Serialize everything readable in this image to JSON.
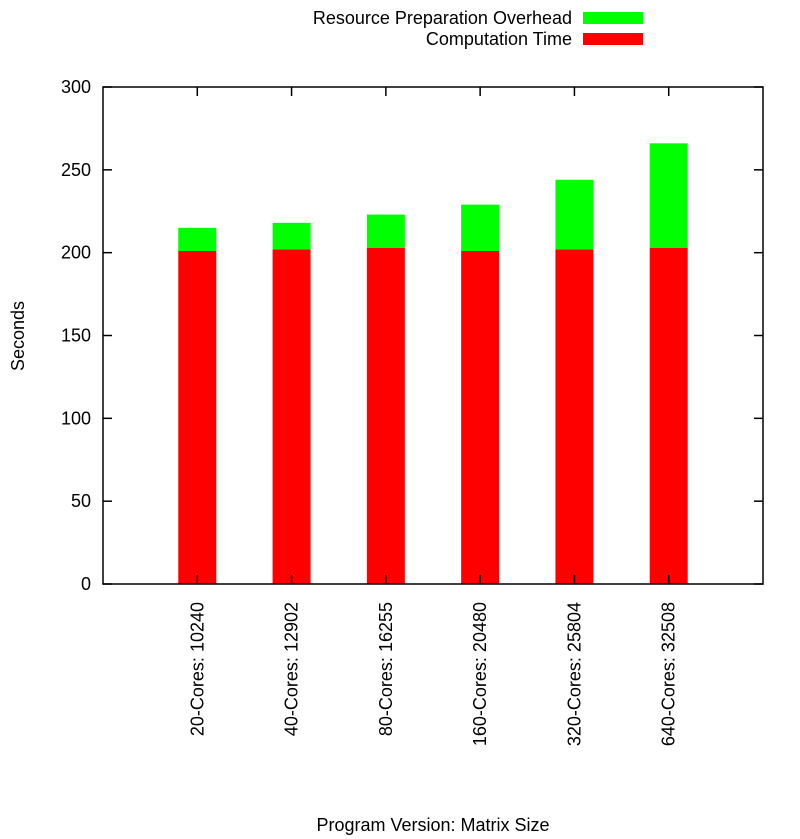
{
  "chart_data": {
    "type": "bar",
    "stacked": true,
    "title": "",
    "xlabel": "Program Version: Matrix Size",
    "ylabel": "Seconds",
    "ylim": [
      0,
      300
    ],
    "yticks": [
      0,
      50,
      100,
      150,
      200,
      250,
      300
    ],
    "categories": [
      "20-Cores: 10240",
      "40-Cores: 12902",
      "80-Cores: 16255",
      "160-Cores: 20480",
      "320-Cores: 25804",
      "640-Cores: 32508"
    ],
    "series": [
      {
        "name": "Computation Time",
        "color": "#ff0000",
        "values": [
          201,
          202,
          203,
          201,
          202,
          203
        ]
      },
      {
        "name": "Resource Preparation Overhead",
        "color": "#00ff00",
        "values": [
          14,
          16,
          20,
          28,
          42,
          63
        ]
      }
    ],
    "legend": {
      "position": "top",
      "order": [
        "Resource Preparation Overhead",
        "Computation Time"
      ]
    },
    "grid": false
  }
}
